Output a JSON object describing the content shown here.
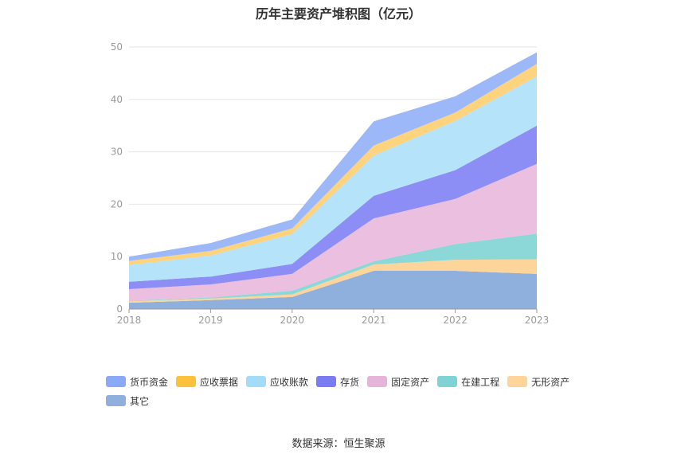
{
  "chart_data": {
    "type": "area",
    "stacked": true,
    "title": "历年主要资产堆积图（亿元）",
    "x": [
      "2018",
      "2019",
      "2020",
      "2021",
      "2022",
      "2023"
    ],
    "ylim": [
      0,
      50
    ],
    "yticks": [
      0,
      10,
      20,
      30,
      40,
      50
    ],
    "grid": true,
    "legend_position": "bottom",
    "series": [
      {
        "name": "其它",
        "color": "#8fb0dc",
        "values": [
          1.2,
          1.7,
          2.3,
          7.3,
          7.3,
          6.7
        ]
      },
      {
        "name": "无形资产",
        "color": "#fdd49a",
        "values": [
          0.3,
          0.3,
          0.5,
          1.2,
          2.1,
          2.8
        ]
      },
      {
        "name": "在建工程",
        "color": "#8cd7d7",
        "values": [
          0.1,
          0.2,
          0.7,
          0.6,
          3.0,
          4.9
        ]
      },
      {
        "name": "固定资产",
        "color": "#ebbfe0",
        "values": [
          2.2,
          2.5,
          3.2,
          8.2,
          8.6,
          13.3
        ]
      },
      {
        "name": "存货",
        "color": "#8c8df5",
        "values": [
          1.4,
          1.5,
          1.9,
          4.3,
          5.5,
          7.3
        ]
      },
      {
        "name": "应收账款",
        "color": "#b5e3fa",
        "values": [
          3.2,
          4.0,
          5.7,
          7.7,
          9.4,
          9.4
        ]
      },
      {
        "name": "应收票据",
        "color": "#fdd37e",
        "values": [
          0.8,
          0.9,
          1.1,
          1.9,
          1.6,
          2.4
        ]
      },
      {
        "name": "货币资金",
        "color": "#9db8f8",
        "values": [
          0.8,
          1.5,
          1.7,
          4.6,
          3.1,
          2.2
        ]
      }
    ]
  },
  "legend": [
    {
      "label": "货币资金",
      "color": "#8aa9f7"
    },
    {
      "label": "应收票据",
      "color": "#fcc23e"
    },
    {
      "label": "应收账款",
      "color": "#a3dcf8"
    },
    {
      "label": "存货",
      "color": "#7b7cf2"
    },
    {
      "label": "固定资产",
      "color": "#e6b3d9"
    },
    {
      "label": "在建工程",
      "color": "#7fd3d4"
    },
    {
      "label": "无形资产",
      "color": "#fdd49a"
    },
    {
      "label": "其它",
      "color": "#8fb0dc"
    }
  ],
  "source_note": "数据来源：恒生聚源"
}
